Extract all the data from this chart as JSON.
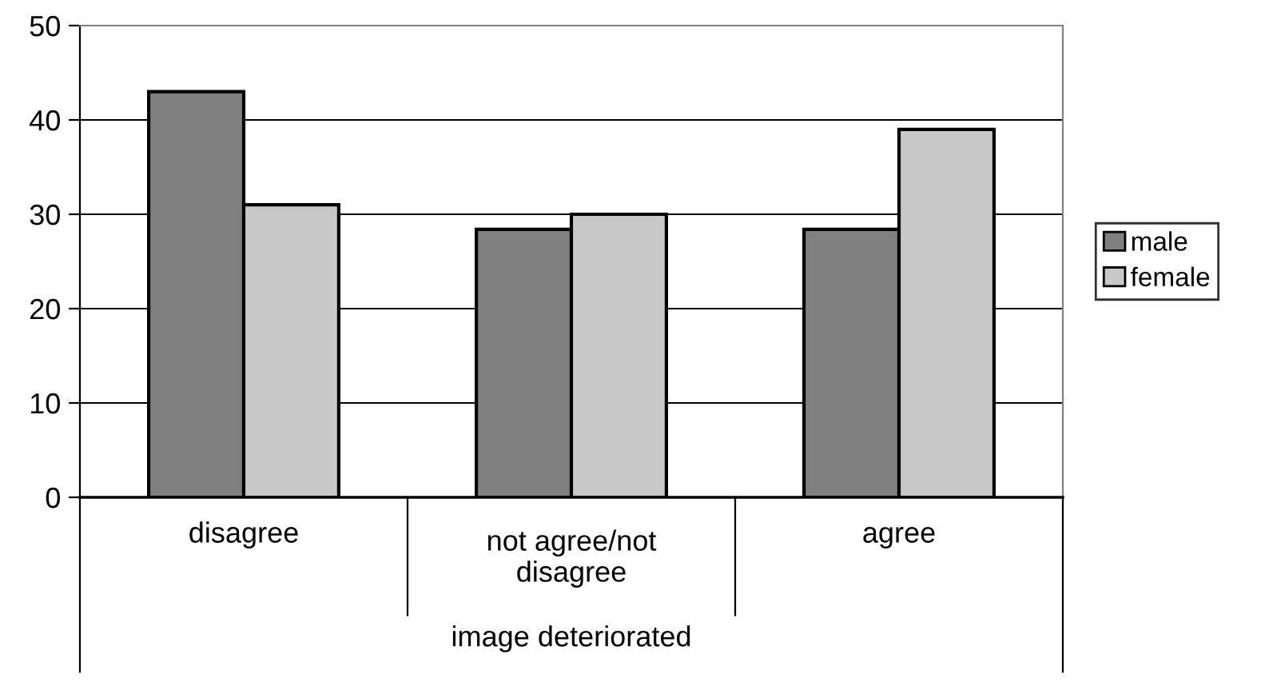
{
  "chart_data": {
    "type": "bar",
    "categories": [
      "disagree",
      "not agree/not disagree",
      "agree"
    ],
    "xlabel": "image deteriorated",
    "series": [
      {
        "name": "male",
        "color": "#808080",
        "values": [
          43,
          28.4,
          28.4
        ]
      },
      {
        "name": "female",
        "color": "#c8c8c8",
        "values": [
          31,
          30,
          39
        ]
      }
    ],
    "ylim": [
      0,
      50
    ],
    "yticks": [
      0,
      10,
      20,
      30,
      40,
      50
    ],
    "grid": "y",
    "legend": "right"
  }
}
